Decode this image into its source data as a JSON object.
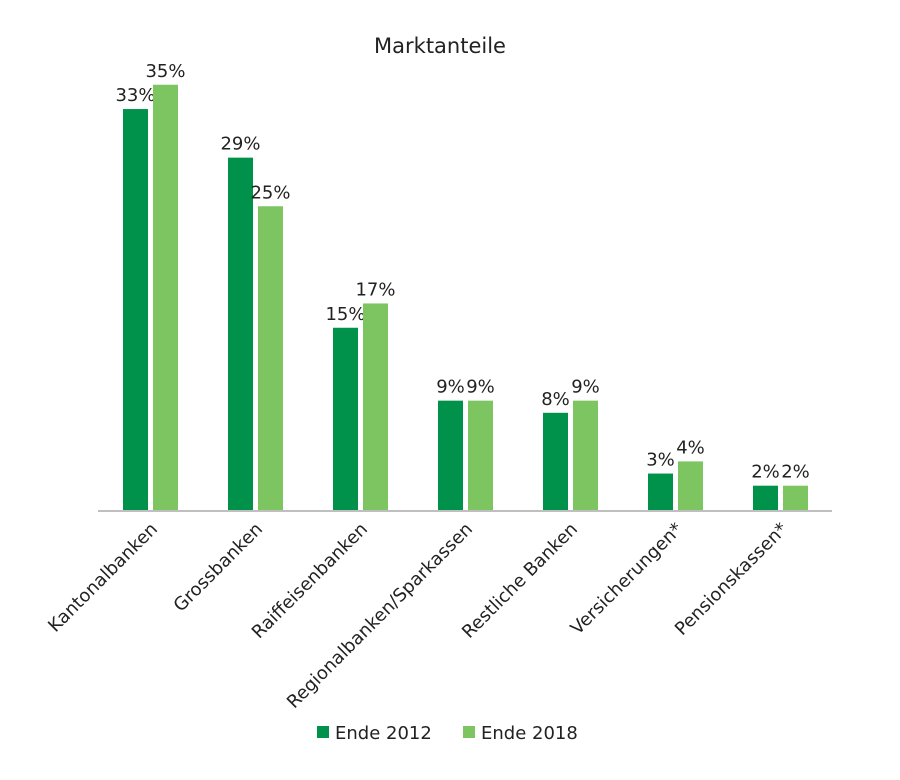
{
  "chart_data": {
    "type": "bar",
    "title": "Marktanteile",
    "categories": [
      "Kantonalbanken",
      "Grossbanken",
      "Raiffeisenbanken",
      "Regionalbanken/Sparkassen",
      "Restliche Banken",
      "Versicherungen*",
      "Pensionskassen*"
    ],
    "series": [
      {
        "name": "Ende 2012",
        "color": "#00914a",
        "values": [
          33,
          29,
          15,
          9,
          8,
          3,
          2
        ],
        "labels": [
          "33%",
          "29%",
          "15%",
          "9%",
          "8%",
          "3%",
          "2%"
        ]
      },
      {
        "name": "Ende 2018",
        "color": "#7cc560",
        "values": [
          35,
          25,
          17,
          9,
          9,
          4,
          2
        ],
        "labels": [
          "35%",
          "25%",
          "17%",
          "9%",
          "9%",
          "4%",
          "2%"
        ]
      }
    ],
    "unit": "%",
    "ylim": [
      0,
      35
    ],
    "grid": false,
    "legend": "bottom",
    "xlabel": "",
    "ylabel": ""
  }
}
